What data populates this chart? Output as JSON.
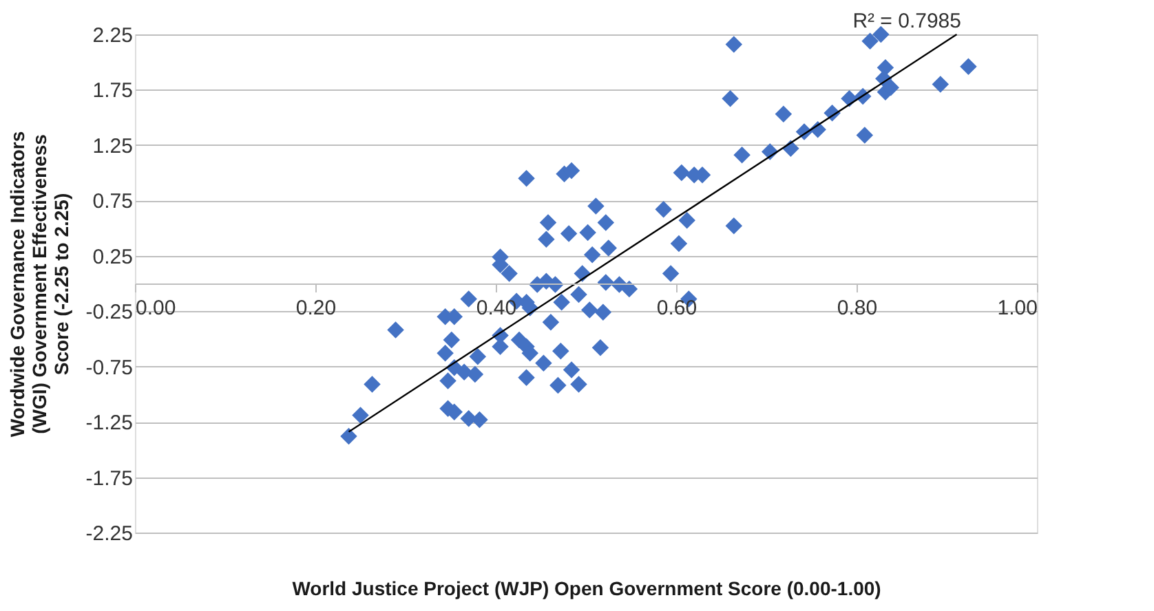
{
  "chart_data": {
    "type": "scatter",
    "xlabel": "World Justice Project (WJP) Open Government Score (0.00-1.00)",
    "ylabel": "Wordwide Governance Indicators (WGI) Government Effectiveness Score (-2.25 to 2.25)",
    "xlim": [
      0,
      1
    ],
    "ylim": [
      -2.25,
      2.25
    ],
    "xticks": [
      {
        "value": 0,
        "label": "0.00"
      },
      {
        "value": 0.2,
        "label": "0.20"
      },
      {
        "value": 0.4,
        "label": "0.40"
      },
      {
        "value": 0.6,
        "label": "0.60"
      },
      {
        "value": 0.8,
        "label": "0.80"
      },
      {
        "value": 1,
        "label": "1.00"
      }
    ],
    "yticks": [
      {
        "value": -2.25,
        "label": "-2.25"
      },
      {
        "value": -1.75,
        "label": "-1.75"
      },
      {
        "value": -1.25,
        "label": "-1.25"
      },
      {
        "value": -0.75,
        "label": "-0.75"
      },
      {
        "value": -0.25,
        "label": "-0.25"
      },
      {
        "value": 0.25,
        "label": "0.25"
      },
      {
        "value": 0.75,
        "label": "0.75"
      },
      {
        "value": 1.25,
        "label": "1.25"
      },
      {
        "value": 1.75,
        "label": "1.75"
      },
      {
        "value": 2.25,
        "label": "2.25"
      }
    ],
    "grid": "y",
    "marker": "diamond",
    "annotations": [
      "R² = 0.7985"
    ],
    "series": [
      {
        "color": "#4472c4",
        "x": [
          0.664,
          0.66,
          0.664,
          0.673,
          0.704,
          0.719,
          0.727,
          0.742,
          0.757,
          0.773,
          0.792,
          0.807,
          0.809,
          0.815,
          0.827,
          0.832,
          0.83,
          0.832,
          0.838,
          0.893,
          0.924,
          0.629,
          0.434,
          0.476,
          0.484,
          0.606,
          0.62,
          0.511,
          0.586,
          0.458,
          0.456,
          0.481,
          0.502,
          0.522,
          0.612,
          0.603,
          0.525,
          0.507,
          0.405,
          0.405,
          0.415,
          0.37,
          0.344,
          0.354,
          0.289,
          0.423,
          0.434,
          0.438,
          0.446,
          0.456,
          0.466,
          0.461,
          0.473,
          0.492,
          0.496,
          0.504,
          0.519,
          0.522,
          0.537,
          0.548,
          0.594,
          0.614,
          0.405,
          0.405,
          0.426,
          0.434,
          0.438,
          0.351,
          0.344,
          0.354,
          0.347,
          0.365,
          0.377,
          0.38,
          0.434,
          0.453,
          0.472,
          0.469,
          0.484,
          0.492,
          0.516,
          0.263,
          0.25,
          0.237,
          0.347,
          0.354,
          0.37,
          0.382
        ],
        "values": [
          2.16,
          1.67,
          0.52,
          1.16,
          1.19,
          1.53,
          1.22,
          1.37,
          1.39,
          1.54,
          1.67,
          1.69,
          1.34,
          2.19,
          2.25,
          1.95,
          1.85,
          1.73,
          1.77,
          1.8,
          1.96,
          0.98,
          0.95,
          0.99,
          1.02,
          1.0,
          0.98,
          0.7,
          0.67,
          0.55,
          0.4,
          0.45,
          0.46,
          0.55,
          0.57,
          0.36,
          0.32,
          0.26,
          0.24,
          0.17,
          0.09,
          -0.14,
          -0.3,
          -0.3,
          -0.42,
          -0.16,
          -0.17,
          -0.22,
          -0.01,
          0.02,
          -0.01,
          -0.35,
          -0.17,
          -0.1,
          0.09,
          -0.24,
          -0.26,
          0.01,
          -0.01,
          -0.05,
          0.09,
          -0.14,
          -0.47,
          -0.57,
          -0.51,
          -0.57,
          -0.63,
          -0.51,
          -0.63,
          -0.76,
          -0.88,
          -0.8,
          -0.82,
          -0.66,
          -0.85,
          -0.72,
          -0.61,
          -0.92,
          -0.78,
          -0.91,
          -0.58,
          -0.91,
          -1.19,
          -1.38,
          -1.13,
          -1.16,
          -1.22,
          -1.23
        ]
      },
      {
        "type": "line",
        "color": "#000000",
        "marker": "none",
        "line_style": "solid",
        "x": [
          0.237,
          0.911
        ],
        "values": [
          -1.34,
          2.25
        ]
      }
    ]
  }
}
